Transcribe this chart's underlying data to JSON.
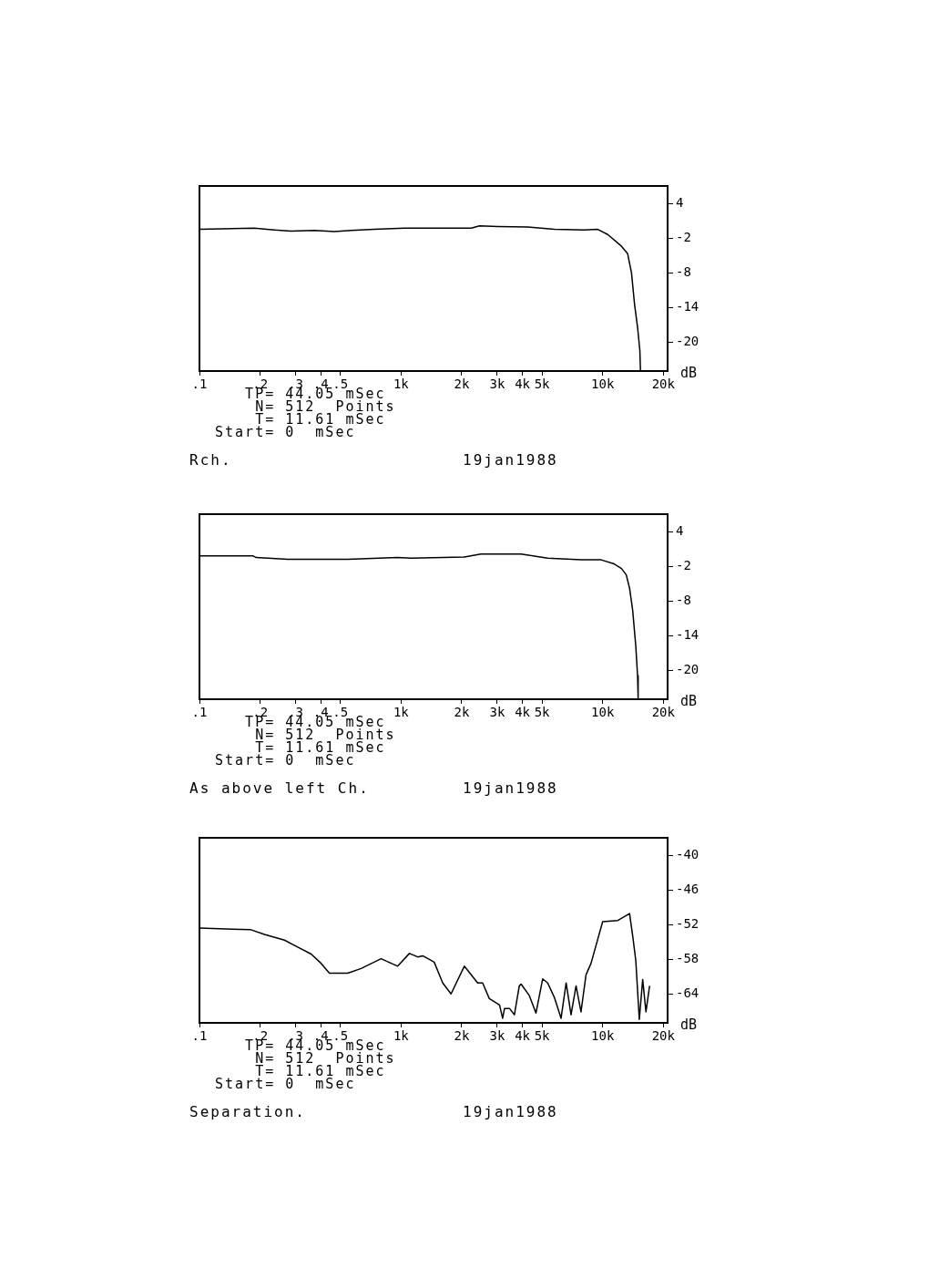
{
  "chart_data": [
    {
      "type": "line",
      "color": "#000000",
      "log": "x",
      "grid": false,
      "legend": false,
      "ylabel": "dB",
      "xlim": [
        0.1,
        21
      ],
      "ylim": [
        -25,
        7
      ],
      "xticks": [
        {
          "value": 0.1,
          "label": ".1"
        },
        {
          "value": 0.2,
          "label": ".2"
        },
        {
          "value": 0.3,
          "label": ".3"
        },
        {
          "value": 0.4,
          "label": ".4"
        },
        {
          "value": 0.5,
          "label": ".5"
        },
        {
          "value": 1,
          "label": "1k"
        },
        {
          "value": 2,
          "label": "2k"
        },
        {
          "value": 3,
          "label": "3k"
        },
        {
          "value": 4,
          "label": "4k"
        },
        {
          "value": 5,
          "label": "5k"
        },
        {
          "value": 10,
          "label": "10k"
        },
        {
          "value": 20,
          "label": "20k"
        }
      ],
      "yticks": [
        4,
        -2,
        -8,
        -14,
        -20
      ],
      "x": [
        0.1,
        0.187,
        0.235,
        0.285,
        0.372,
        0.467,
        0.565,
        0.738,
        1.04,
        2.23,
        2.45,
        3.02,
        4.25,
        5.77,
        8.12,
        9.46,
        10.6,
        12.3,
        13.3,
        13.9,
        14.4,
        14.9,
        15.3,
        15.4
      ],
      "values": [
        -0.5,
        -0.3,
        -0.6,
        -0.8,
        -0.7,
        -0.9,
        -0.7,
        -0.5,
        -0.3,
        -0.3,
        0.1,
        0.0,
        -0.1,
        -0.5,
        -0.6,
        -0.5,
        -1.4,
        -3.3,
        -4.7,
        -8,
        -13.5,
        -17.4,
        -21.5,
        -24.9
      ],
      "annotations": [
        "TP= 44.05 mSec",
        "N= 512  Points",
        "T= 11.61 mSec",
        "Start= 0  mSec",
        "Rch.",
        "19jan1988"
      ]
    },
    {
      "type": "line",
      "color": "#000000",
      "log": "x",
      "grid": false,
      "legend": false,
      "ylabel": "dB",
      "xlim": [
        0.1,
        21
      ],
      "ylim": [
        -25,
        7
      ],
      "xticks": [
        {
          "value": 0.1,
          "label": ".1"
        },
        {
          "value": 0.2,
          "label": ".2"
        },
        {
          "value": 0.3,
          "label": ".3"
        },
        {
          "value": 0.4,
          "label": ".4"
        },
        {
          "value": 0.5,
          "label": ".5"
        },
        {
          "value": 1,
          "label": "1k"
        },
        {
          "value": 2,
          "label": "2k"
        },
        {
          "value": 3,
          "label": "3k"
        },
        {
          "value": 4,
          "label": "4k"
        },
        {
          "value": 5,
          "label": "5k"
        },
        {
          "value": 10,
          "label": "10k"
        },
        {
          "value": 20,
          "label": "20k"
        }
      ],
      "yticks": [
        4,
        -2,
        -8,
        -14,
        -20
      ],
      "x": [
        0.1,
        0.184,
        0.191,
        0.274,
        0.544,
        0.963,
        1.12,
        2.06,
        2.49,
        3.94,
        5.34,
        7.81,
        9.83,
        11.4,
        12.4,
        13.1,
        13.6,
        14.1,
        14.6,
        14.9,
        15.0
      ],
      "values": [
        -0.2,
        -0.2,
        -0.5,
        -0.8,
        -0.8,
        -0.5,
        -0.6,
        -0.4,
        0.1,
        0.1,
        -0.6,
        -0.9,
        -0.9,
        -1.6,
        -2.4,
        -3.5,
        -5.8,
        -9.7,
        -15.8,
        -20.9,
        -25
      ],
      "annotations": [
        "TP= 44.05 mSec",
        "N= 512  Points",
        "T= 11.61 mSec",
        "Start= 0  mSec",
        "As above left Ch.",
        "19jan1988"
      ]
    },
    {
      "type": "line",
      "color": "#000000",
      "log": "x",
      "grid": false,
      "legend": false,
      "ylabel": "dB",
      "xlim": [
        0.1,
        21
      ],
      "ylim": [
        -69,
        -37
      ],
      "xticks": [
        {
          "value": 0.1,
          "label": ".1"
        },
        {
          "value": 0.2,
          "label": ".2"
        },
        {
          "value": 0.3,
          "label": ".3"
        },
        {
          "value": 0.4,
          "label": ".4"
        },
        {
          "value": 0.5,
          "label": ".5"
        },
        {
          "value": 1,
          "label": "1k"
        },
        {
          "value": 2,
          "label": "2k"
        },
        {
          "value": 3,
          "label": "3k"
        },
        {
          "value": 4,
          "label": "4k"
        },
        {
          "value": 5,
          "label": "5k"
        },
        {
          "value": 10,
          "label": "10k"
        },
        {
          "value": 20,
          "label": "20k"
        }
      ],
      "yticks": [
        -40,
        -46,
        -52,
        -58,
        -64
      ],
      "x": [
        0.1,
        0.18,
        0.21,
        0.264,
        0.307,
        0.358,
        0.401,
        0.441,
        0.544,
        0.634,
        0.796,
        0.962,
        1.1,
        1.21,
        1.28,
        1.46,
        1.61,
        1.77,
        2.06,
        2.4,
        2.54,
        2.74,
        3.08,
        3.19,
        3.26,
        3.45,
        3.65,
        3.86,
        3.94,
        4.33,
        4.67,
        5.04,
        5.34,
        5.76,
        6.22,
        6.59,
        6.97,
        7.38,
        7.81,
        8.27,
        8.76,
        10.0,
        11.9,
        13.6,
        14.1,
        14.6,
        15.2,
        15.8,
        16.4,
        17.1
      ],
      "values": [
        -52.6,
        -52.9,
        -53.7,
        -54.7,
        -55.9,
        -57.1,
        -58.7,
        -60.4,
        -60.4,
        -59.6,
        -57.9,
        -59.2,
        -57.0,
        -57.6,
        -57.4,
        -58.5,
        -62.1,
        -64.0,
        -59.2,
        -62.1,
        -62.1,
        -64.8,
        -65.9,
        -68.2,
        -66.5,
        -66.5,
        -67.6,
        -62.6,
        -62.3,
        -64.3,
        -67.3,
        -61.4,
        -62.1,
        -64.6,
        -68.2,
        -62.1,
        -67.6,
        -62.6,
        -67.1,
        -60.7,
        -58.7,
        -51.5,
        -51.3,
        -50.1,
        -54.0,
        -58.2,
        -68.4,
        -61.5,
        -67.1,
        -62.6
      ],
      "annotations": [
        "TP= 44.05 mSec",
        "N= 512  Points",
        "T= 11.61 mSec",
        "Start= 0  mSec",
        "Separation.",
        "19jan1988"
      ]
    }
  ]
}
